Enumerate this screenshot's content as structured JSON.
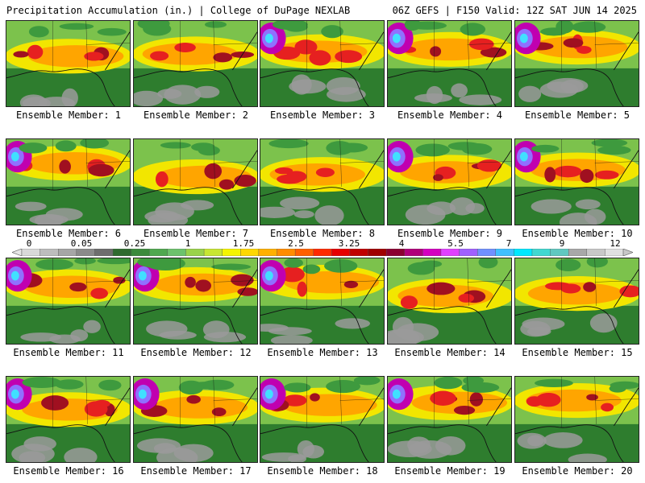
{
  "header": {
    "left_title": "Precipitation Accumulation (in.) | College of DuPage NEXLAB",
    "right_title": "06Z GEFS | F150 Valid: 12Z SAT JUN 14 2025"
  },
  "colorbar": {
    "tick_labels": [
      "0",
      "0.05",
      "0.25",
      "1",
      "1.75",
      "2.5",
      "3.25",
      "4",
      "5.5",
      "7",
      "9",
      "12"
    ],
    "colors": [
      "#d9d9d9",
      "#bdbdbd",
      "#a6a6a6",
      "#8a8a8a",
      "#6e6e6e",
      "#2f6b2f",
      "#3c8a3c",
      "#4fa84f",
      "#6cc26c",
      "#9ad24a",
      "#c8e632",
      "#f5f500",
      "#ffd700",
      "#ffb000",
      "#ff8c00",
      "#ff6000",
      "#ff2a00",
      "#e60000",
      "#c00000",
      "#a00000",
      "#8b0030",
      "#b0007a",
      "#d400c0",
      "#e040ff",
      "#a060ff",
      "#7090ff",
      "#40c0ff",
      "#00e8ff",
      "#40d8d0",
      "#60c8c0",
      "#a8a8a8",
      "#c8c8c8",
      "#e0e0e0"
    ]
  },
  "members": [
    {
      "label": "Ensemble Member: 1"
    },
    {
      "label": "Ensemble Member: 2"
    },
    {
      "label": "Ensemble Member: 3"
    },
    {
      "label": "Ensemble Member: 4"
    },
    {
      "label": "Ensemble Member: 5"
    },
    {
      "label": "Ensemble Member: 6"
    },
    {
      "label": "Ensemble Member: 7"
    },
    {
      "label": "Ensemble Member: 8"
    },
    {
      "label": "Ensemble Member: 9"
    },
    {
      "label": "Ensemble Member: 10"
    },
    {
      "label": "Ensemble Member: 11"
    },
    {
      "label": "Ensemble Member: 12"
    },
    {
      "label": "Ensemble Member: 13"
    },
    {
      "label": "Ensemble Member: 14"
    },
    {
      "label": "Ensemble Member: 15"
    },
    {
      "label": "Ensemble Member: 16"
    },
    {
      "label": "Ensemble Member: 17"
    },
    {
      "label": "Ensemble Member: 18"
    },
    {
      "label": "Ensemble Member: 19"
    },
    {
      "label": "Ensemble Member: 20"
    }
  ]
}
